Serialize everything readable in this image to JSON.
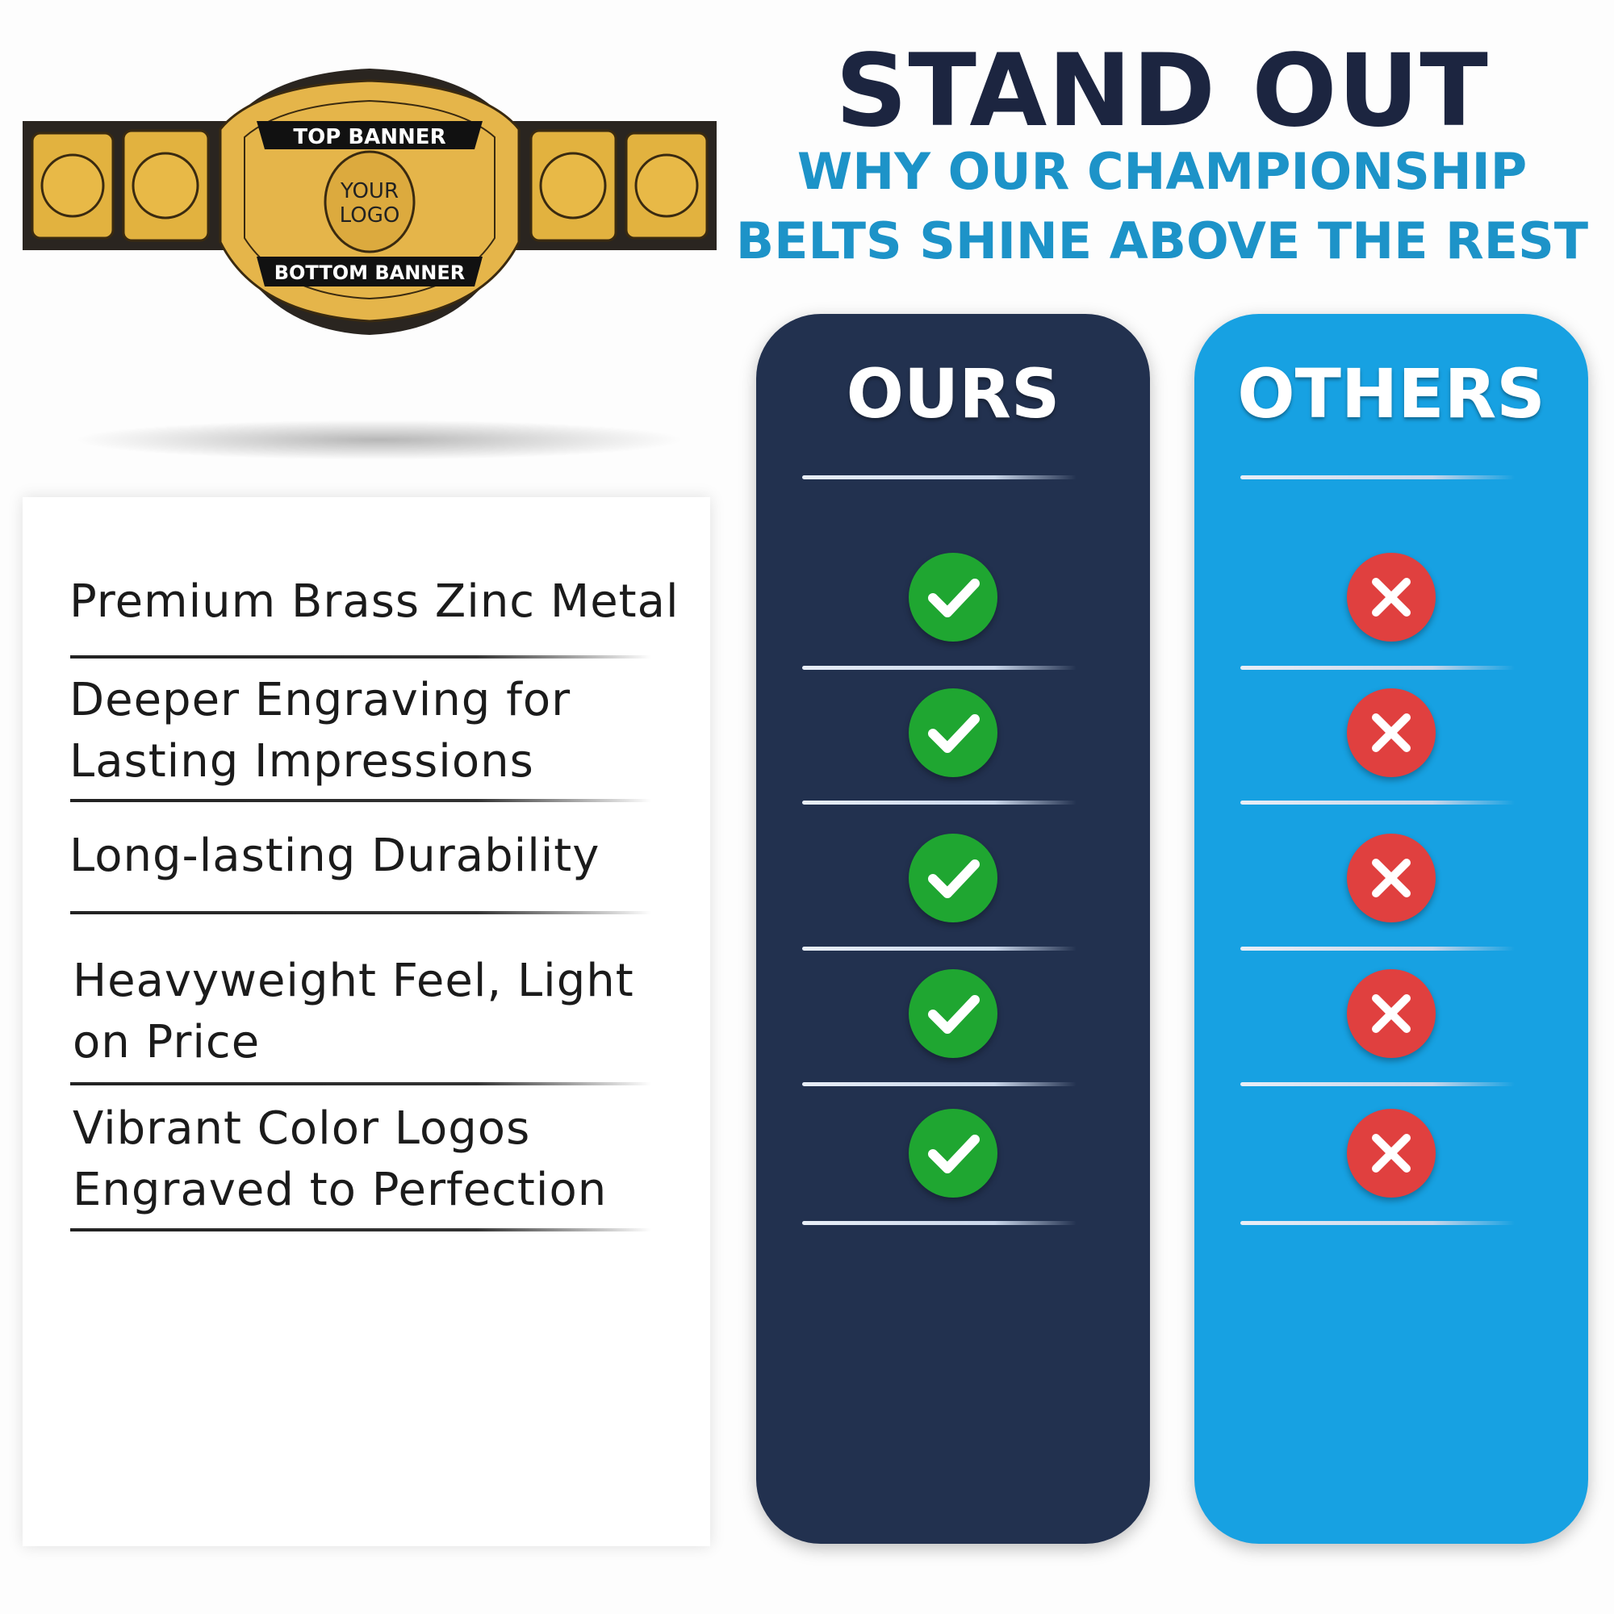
{
  "belt": {
    "top_banner": "TOP BANNER",
    "logo_line1": "YOUR",
    "logo_line2": "LOGO",
    "bottom_banner": "BOTTOM BANNER"
  },
  "header": {
    "title": "STAND OUT",
    "subtitle_line1": "WHY OUR CHAMPIONSHIP",
    "subtitle_line2": "BELTS SHINE ABOVE THE REST"
  },
  "features": [
    "Premium Brass Zinc Metal",
    "Deeper Engraving for\nLasting Impressions",
    "Long-lasting Durability",
    "Heavyweight Feel, Light\non Price",
    "Vibrant Color Logos\nEngraved to Perfection"
  ],
  "columns": {
    "ours": {
      "label": "OURS",
      "color": "#22314f",
      "icons": [
        "check-icon",
        "check-icon",
        "check-icon",
        "check-icon",
        "check-icon"
      ]
    },
    "others": {
      "label": "OTHERS",
      "color": "#17a1e2",
      "icons": [
        "x-icon",
        "x-icon",
        "x-icon",
        "x-icon",
        "x-icon"
      ]
    }
  },
  "colors": {
    "check": "#1fa631",
    "cross": "#e0403f",
    "title": "#1c2540",
    "subtitle": "#1d93c8"
  }
}
